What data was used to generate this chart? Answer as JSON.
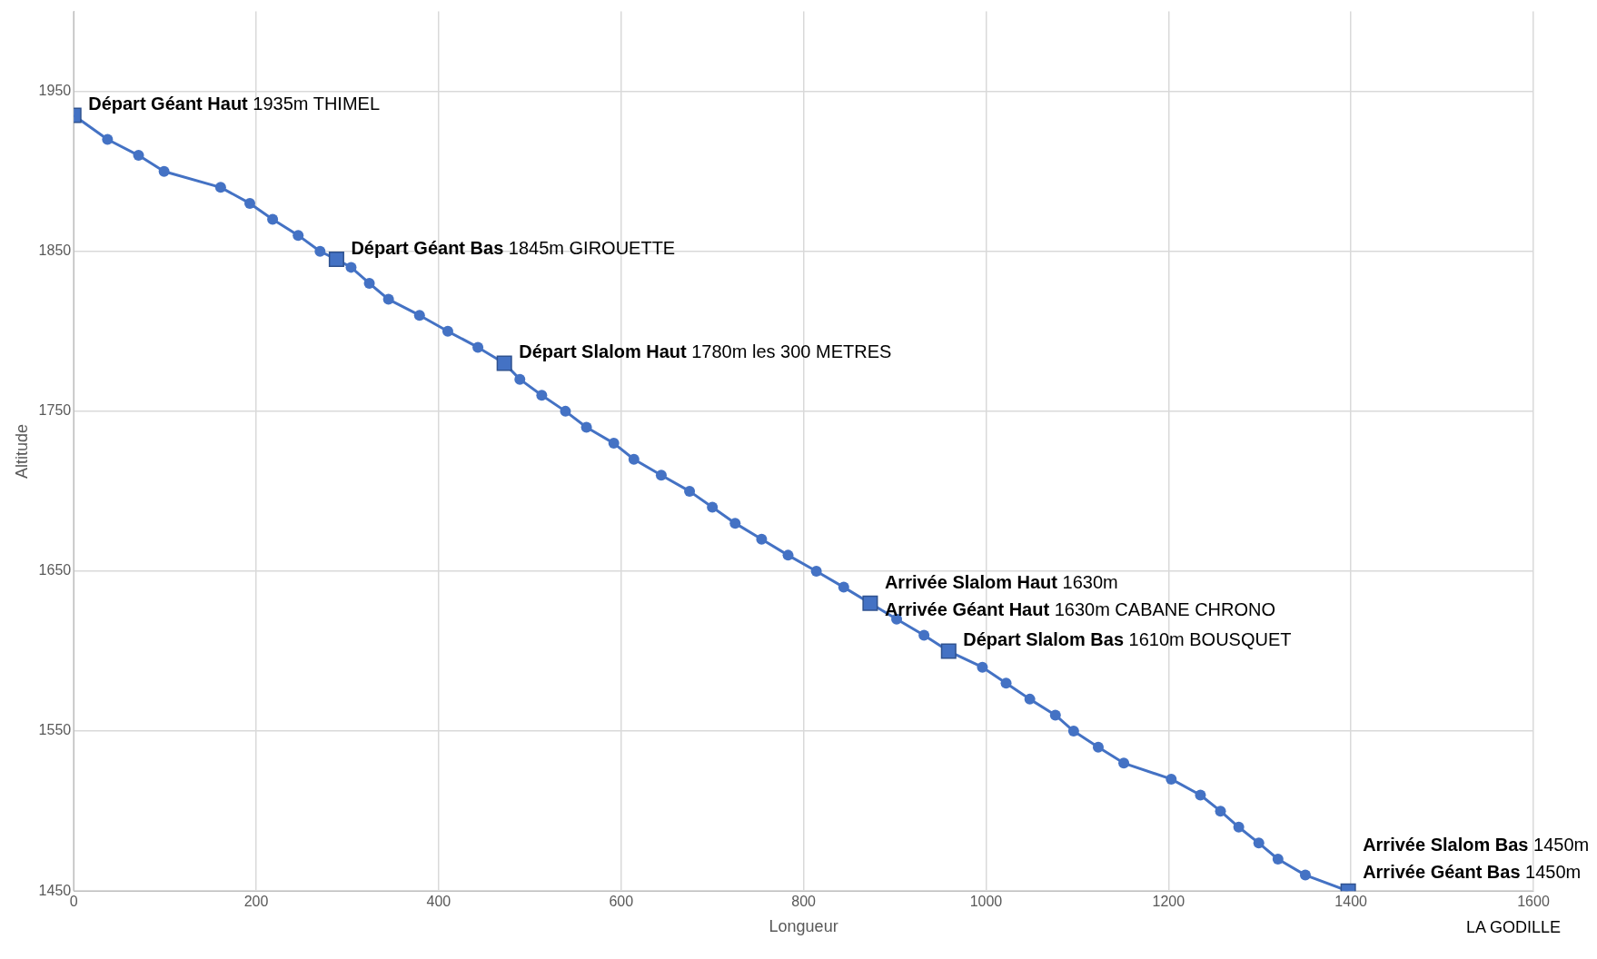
{
  "chart_data": {
    "type": "line",
    "xlabel": "Longueur",
    "ylabel": "Altitude",
    "xlim": [
      0,
      1600
    ],
    "xticks": [
      0,
      200,
      400,
      600,
      800,
      1000,
      1200,
      1400,
      1600
    ],
    "ylim": [
      1450,
      2000
    ],
    "yticks": [
      1450,
      1550,
      1650,
      1750,
      1850,
      1950
    ],
    "grid": true,
    "legend": false,
    "series": [
      {
        "type": "line",
        "marker": "none",
        "color": "#4472c4",
        "x": [
          0,
          37,
          71,
          99,
          161,
          193,
          218,
          246,
          270,
          288,
          304,
          324,
          345,
          379,
          410,
          443,
          472,
          489,
          513,
          539,
          562,
          592,
          614,
          644,
          675,
          700,
          725,
          754,
          783,
          814,
          844,
          873,
          902,
          932,
          959,
          996,
          1022,
          1048,
          1076,
          1096,
          1123,
          1151,
          1203,
          1235,
          1257,
          1277,
          1299,
          1320,
          1350,
          1397
        ],
        "values": [
          1935,
          1920,
          1910,
          1900,
          1890,
          1880,
          1870,
          1860,
          1850,
          1845,
          1840,
          1830,
          1820,
          1810,
          1800,
          1790,
          1780,
          1770,
          1760,
          1750,
          1740,
          1730,
          1720,
          1710,
          1700,
          1690,
          1680,
          1670,
          1660,
          1650,
          1640,
          1630,
          1620,
          1610,
          1600,
          1590,
          1580,
          1570,
          1560,
          1550,
          1540,
          1530,
          1520,
          1510,
          1500,
          1490,
          1480,
          1470,
          1460,
          1450
        ]
      },
      {
        "type": "scatter",
        "marker": "circle",
        "color": "#4472c4",
        "x": [
          37,
          71,
          99,
          161,
          193,
          218,
          246,
          270,
          304,
          324,
          345,
          379,
          410,
          443,
          489,
          513,
          539,
          562,
          592,
          614,
          644,
          675,
          700,
          725,
          754,
          783,
          814,
          844,
          902,
          932,
          996,
          1022,
          1048,
          1076,
          1096,
          1123,
          1151,
          1203,
          1235,
          1257,
          1277,
          1299,
          1320,
          1350
        ],
        "values": [
          1920,
          1910,
          1900,
          1890,
          1880,
          1870,
          1860,
          1850,
          1840,
          1830,
          1820,
          1810,
          1800,
          1790,
          1770,
          1760,
          1750,
          1740,
          1730,
          1720,
          1710,
          1700,
          1690,
          1680,
          1670,
          1660,
          1650,
          1640,
          1620,
          1610,
          1590,
          1580,
          1570,
          1560,
          1550,
          1540,
          1530,
          1520,
          1510,
          1500,
          1490,
          1480,
          1470,
          1460
        ]
      },
      {
        "type": "scatter",
        "marker": "square",
        "color": "#4472c4",
        "x": [
          0,
          288,
          472,
          873,
          959,
          1397
        ],
        "values": [
          1935,
          1845,
          1780,
          1630,
          1600,
          1450
        ]
      }
    ],
    "annotations": [
      {
        "text": "Départ Géant Haut 1935m THIMEL",
        "x": 0,
        "y": 1935
      },
      {
        "text": "Départ Géant Bas 1845m GIROUETTE",
        "x": 288,
        "y": 1845
      },
      {
        "text": "Départ Slalom Haut 1780m les 300 METRES",
        "x": 472,
        "y": 1780
      },
      {
        "text": "Arrivée Slalom Haut 1630m",
        "x": 873,
        "y": 1630
      },
      {
        "text": "Arrivée Géant Haut 1630m CABANE CHRONO",
        "x": 873,
        "y": 1630
      },
      {
        "text": "Départ Slalom Bas 1610m BOUSQUET",
        "x": 959,
        "y": 1600
      },
      {
        "text": "Arrivée Slalom Bas 1450m",
        "x": 1397,
        "y": 1450
      },
      {
        "text": "Arrivée Géant Bas 1450m",
        "x": 1397,
        "y": 1450
      },
      "LA GODILLE"
    ]
  }
}
